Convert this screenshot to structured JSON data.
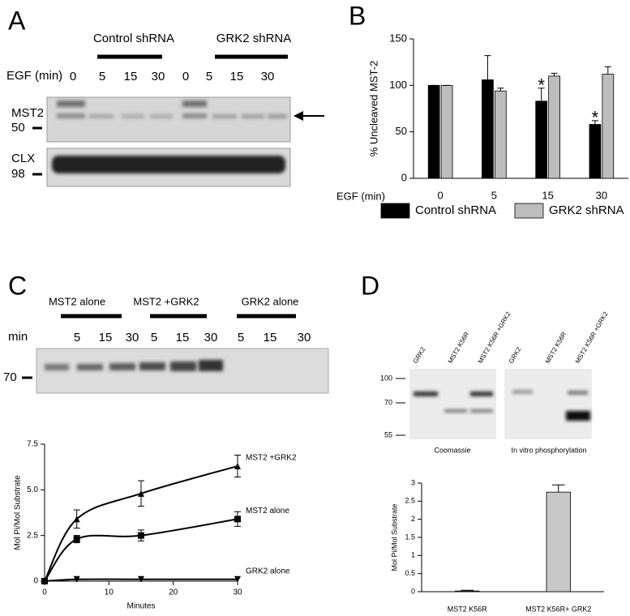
{
  "panels": {
    "a": {
      "letter": "A",
      "groups": [
        "Control shRNA",
        "GRK2 shRNA"
      ],
      "egf_label": "EGF (min)",
      "times": [
        "0",
        "5",
        "15",
        "30",
        "0",
        "5",
        "15",
        "30"
      ],
      "blots": [
        {
          "name": "MST2",
          "marker": "50"
        },
        {
          "name": "CLX",
          "marker": "98"
        }
      ]
    },
    "b": {
      "letter": "B"
    },
    "c": {
      "letter": "C",
      "groups": [
        "MST2 alone",
        "MST2 +GRK2",
        "GRK2 alone"
      ],
      "min_label": "min",
      "times": [
        "5",
        "15",
        "30",
        "5",
        "15",
        "30",
        "5",
        "15",
        "30"
      ],
      "marker": "70"
    },
    "d": {
      "letter": "D",
      "lanes": [
        "GRK2",
        "MST2 K56R",
        "MST2 K56R +GRK2",
        "GRK2",
        "MST2 K56R",
        "MST2 K56R +GRK2"
      ],
      "markers": [
        "100",
        "70",
        "55"
      ],
      "captions": [
        "Coomassie",
        "In vitro phosphorylation"
      ]
    }
  },
  "chart_data": [
    {
      "type": "bar",
      "x_label": "EGF (min)",
      "y_label": "% Uncleaved MST-2",
      "categories": [
        "0",
        "5",
        "15",
        "30"
      ],
      "series": [
        {
          "name": "Control shRNA",
          "color": "#000000",
          "values": [
            100,
            106,
            83,
            58
          ],
          "errors": [
            0,
            26,
            14,
            4
          ],
          "annotations": [
            null,
            null,
            "*",
            "*"
          ]
        },
        {
          "name": "GRK2 shRNA",
          "color": "#bdbdbd",
          "values": [
            100,
            94,
            110,
            112
          ],
          "errors": [
            0,
            3,
            3,
            8
          ]
        }
      ],
      "ylim": [
        0,
        150
      ],
      "yticks": [
        0,
        50,
        100,
        150
      ],
      "legend": "bottom"
    },
    {
      "type": "line",
      "x_label": "Minutes",
      "y_label": "Mol Pi/Mol Substrate",
      "x": [
        0,
        5,
        15,
        30
      ],
      "series": [
        {
          "name": "MST2 +GRK2",
          "color": "#000000",
          "marker": "triangle",
          "values": [
            0,
            3.4,
            4.8,
            6.3
          ],
          "errors": [
            0,
            0.5,
            0.7,
            0.6
          ]
        },
        {
          "name": "MST2 alone",
          "color": "#000000",
          "marker": "square",
          "values": [
            0,
            2.3,
            2.5,
            3.4
          ],
          "errors": [
            0,
            0.2,
            0.3,
            0.4
          ]
        },
        {
          "name": "GRK2 alone",
          "color": "#000000",
          "marker": "triangle-down",
          "values": [
            0,
            0.1,
            0.1,
            0.1
          ]
        }
      ],
      "xlim": [
        0,
        30
      ],
      "xticks": [
        0,
        10,
        20,
        30
      ],
      "ylim": [
        0,
        7.5
      ],
      "yticks": [
        0,
        2.5,
        {
          "value": 5,
          "label": "5.0"
        },
        7.5
      ]
    },
    {
      "type": "bar",
      "y_label": "Mol Pi/Mol Substrate",
      "categories": [
        "MST2 K56R",
        "MST2 K56R+ GRK2"
      ],
      "values": [
        0.02,
        2.75
      ],
      "errors": [
        0.02,
        0.2
      ],
      "color": "#c8c8c8",
      "ylim": [
        0,
        3
      ],
      "yticks": [
        0,
        0.5,
        1,
        1.5,
        2,
        2.5,
        3
      ]
    }
  ]
}
